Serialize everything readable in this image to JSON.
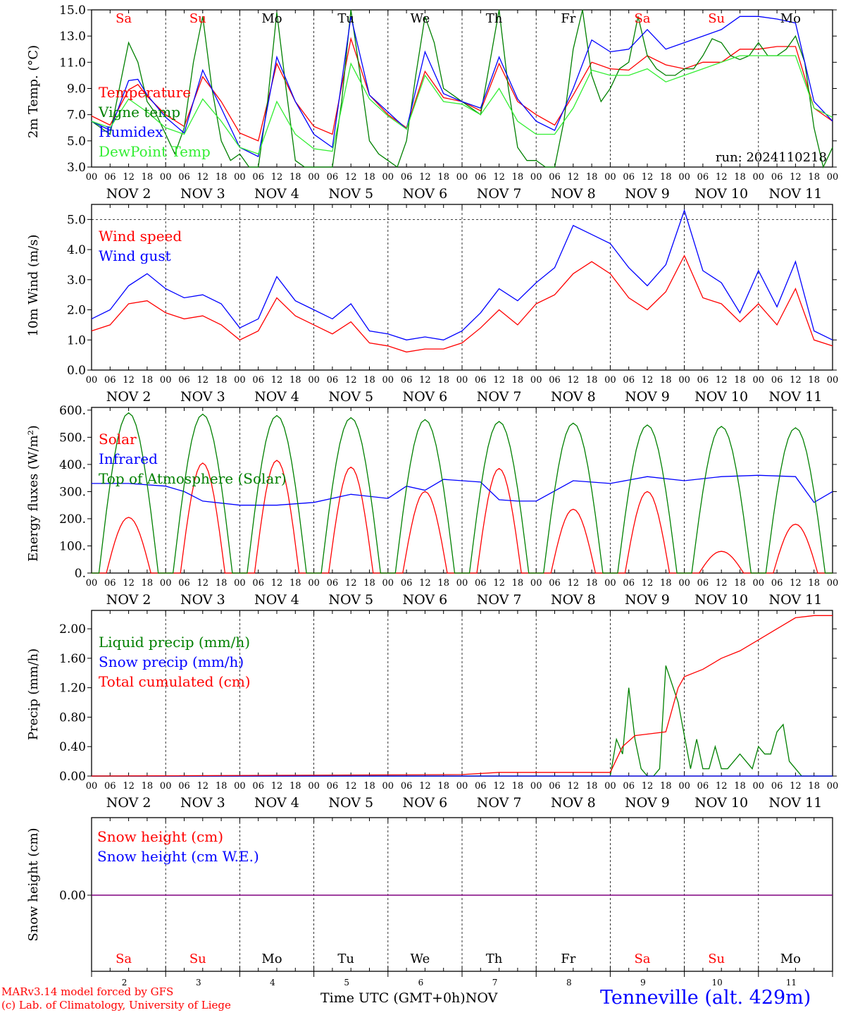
{
  "x_hour_labels": [
    "00",
    "06",
    "12",
    "18"
  ],
  "day_labels": [
    "NOV  2",
    "NOV  3",
    "NOV  4",
    "NOV  5",
    "NOV  6",
    "NOV  7",
    "NOV  8",
    "NOV  9",
    "NOV 10",
    "NOV 11"
  ],
  "weekdays": [
    {
      "label": "Sa",
      "color": "#ff0000"
    },
    {
      "label": "Su",
      "color": "#ff0000"
    },
    {
      "label": "Mo",
      "color": "#000000"
    },
    {
      "label": "Tu",
      "color": "#000000"
    },
    {
      "label": "We",
      "color": "#000000"
    },
    {
      "label": "Th",
      "color": "#000000"
    },
    {
      "label": "Fr",
      "color": "#000000"
    },
    {
      "label": "Sa",
      "color": "#ff0000"
    },
    {
      "label": "Su",
      "color": "#ff0000"
    },
    {
      "label": "Mo",
      "color": "#000000"
    }
  ],
  "bottom_day_numbers": [
    "2",
    "3",
    "4",
    "5",
    "6",
    "7",
    "8",
    "9",
    "10",
    "11"
  ],
  "footer": {
    "model": "MARv3.14 model forced by GFS",
    "credit": "(c) Lab. of Climatology, University of Liege",
    "xlabel": "Time UTC (GMT+0h)",
    "month": "NOV",
    "station": "Tenneville (alt. 429m)"
  },
  "colors": {
    "red": "#ff0000",
    "green": "#008000",
    "blue": "#0000ff",
    "lightgreen": "#33ee33",
    "purple": "#800080"
  },
  "chart_data": [
    {
      "type": "line",
      "ylabel": "2m Temp. (°C)",
      "ylim": [
        3,
        15
      ],
      "yticks": [
        "3.0",
        "5.0",
        "7.0",
        "9.0",
        "11.0",
        "13.0",
        "15.0"
      ],
      "annotation": "run: 2024110218",
      "x_units": "hours from 2024-11-02 00 UTC",
      "series": [
        {
          "name": "Temperature",
          "color": "#ff0000",
          "x": [
            0,
            6,
            12,
            15,
            18,
            24,
            30,
            36,
            42,
            48,
            54,
            60,
            66,
            72,
            78,
            84,
            90,
            96,
            102,
            108,
            114,
            120,
            126,
            132,
            138,
            144,
            150,
            156,
            162,
            168,
            174,
            180,
            186,
            192,
            198,
            204,
            210,
            216,
            222,
            228,
            234,
            240
          ],
          "y": [
            6.9,
            6.2,
            8.9,
            9.3,
            8.4,
            7.0,
            6.1,
            9.9,
            8.0,
            5.6,
            5.0,
            10.9,
            8.0,
            6.1,
            5.5,
            12.8,
            8.5,
            7.0,
            6.0,
            10.3,
            8.3,
            8.0,
            7.3,
            10.9,
            8.0,
            7.0,
            6.2,
            8.5,
            11.0,
            10.5,
            10.4,
            11.5,
            10.8,
            10.5,
            11.0,
            11.0,
            12.0,
            12.0,
            12.2,
            12.2,
            7.5,
            6.5
          ]
        },
        {
          "name": "Vigne temp",
          "color": "#008000",
          "x": [
            0,
            6,
            9,
            12,
            15,
            18,
            21,
            24,
            27,
            30,
            33,
            36,
            39,
            42,
            45,
            48,
            51,
            54,
            57,
            60,
            63,
            66,
            69,
            72,
            75,
            78,
            81,
            84,
            87,
            90,
            93,
            96,
            99,
            102,
            105,
            108,
            111,
            114,
            117,
            120,
            123,
            126,
            129,
            132,
            135,
            138,
            141,
            144,
            147,
            150,
            153,
            156,
            159,
            162,
            165,
            168,
            171,
            174,
            177,
            180,
            183,
            186,
            189,
            192,
            195,
            198,
            201,
            204,
            207,
            210,
            213,
            216,
            219,
            222,
            225,
            228,
            231,
            234,
            237,
            240
          ],
          "y": [
            6.5,
            5.5,
            9.0,
            12.5,
            11.0,
            8.0,
            7.0,
            5.5,
            4.0,
            6.0,
            11.0,
            14.5,
            9.0,
            5.0,
            3.5,
            4.0,
            3.0,
            2.5,
            8.0,
            14.8,
            9.0,
            3.5,
            2.5,
            2.0,
            1.5,
            2.5,
            8.0,
            15.0,
            10.0,
            5.0,
            4.0,
            3.5,
            3.0,
            5.0,
            10.0,
            14.5,
            12.5,
            9.0,
            8.5,
            8.0,
            7.5,
            7.0,
            11.0,
            15.0,
            9.0,
            4.5,
            3.5,
            3.5,
            2.5,
            2.5,
            6.5,
            12.0,
            15.0,
            10.0,
            8.0,
            9.0,
            10.5,
            11.0,
            14.5,
            11.5,
            10.5,
            10.0,
            10.0,
            10.5,
            10.5,
            11.5,
            12.8,
            12.5,
            11.5,
            11.2,
            11.5,
            12.5,
            11.5,
            11.5,
            12.0,
            13.0,
            11.0,
            6.0,
            3.0,
            4.5
          ]
        },
        {
          "name": "Humidex",
          "color": "#0000ff",
          "x": [
            0,
            6,
            12,
            15,
            18,
            24,
            30,
            36,
            42,
            48,
            54,
            60,
            66,
            72,
            78,
            84,
            90,
            96,
            102,
            108,
            114,
            120,
            126,
            132,
            138,
            144,
            150,
            156,
            162,
            168,
            174,
            180,
            186,
            192,
            198,
            204,
            210,
            216,
            222,
            228,
            234,
            240
          ],
          "y": [
            6.5,
            5.8,
            9.6,
            9.7,
            8.5,
            6.8,
            5.6,
            10.4,
            7.5,
            4.5,
            3.8,
            11.4,
            8.0,
            5.5,
            4.5,
            14.5,
            8.5,
            7.2,
            5.9,
            11.8,
            8.6,
            8.0,
            7.5,
            11.4,
            8.2,
            6.5,
            5.8,
            9.0,
            12.7,
            11.8,
            12.0,
            13.5,
            12.0,
            12.5,
            13.0,
            13.5,
            14.5,
            14.5,
            14.3,
            14.0,
            8.0,
            6.5
          ]
        },
        {
          "name": "DewPoint Temp",
          "color": "#33ee33",
          "x": [
            0,
            6,
            12,
            18,
            24,
            30,
            36,
            42,
            48,
            54,
            60,
            66,
            72,
            78,
            84,
            90,
            96,
            102,
            108,
            114,
            120,
            126,
            132,
            138,
            144,
            150,
            156,
            162,
            168,
            174,
            180,
            186,
            192,
            198,
            204,
            210,
            216,
            222,
            228,
            234,
            240
          ],
          "y": [
            6.5,
            6.0,
            8.2,
            7.2,
            6.0,
            5.5,
            8.2,
            6.5,
            4.5,
            4.0,
            8.0,
            5.5,
            4.4,
            4.2,
            10.9,
            8.2,
            6.9,
            5.9,
            10.0,
            8.0,
            7.8,
            7.0,
            9.0,
            6.5,
            5.5,
            5.5,
            7.5,
            10.4,
            10.0,
            10.0,
            10.5,
            9.5,
            10.0,
            10.5,
            11.0,
            11.5,
            11.5,
            11.5,
            11.5,
            7.5,
            6.8
          ]
        }
      ]
    },
    {
      "type": "line",
      "ylabel": "10m Wind (m/s)",
      "ylim": [
        0,
        5.5
      ],
      "yticks": [
        "0.0",
        "1.0",
        "2.0",
        "3.0",
        "4.0",
        "5.0"
      ],
      "x_units": "hours from 2024-11-02 00 UTC",
      "series": [
        {
          "name": "Wind speed",
          "color": "#ff0000",
          "x": [
            0,
            6,
            12,
            18,
            24,
            30,
            36,
            42,
            48,
            54,
            60,
            66,
            72,
            78,
            84,
            90,
            96,
            102,
            108,
            114,
            120,
            126,
            132,
            138,
            144,
            150,
            156,
            162,
            168,
            174,
            180,
            186,
            192,
            198,
            204,
            210,
            216,
            222,
            228,
            234,
            240
          ],
          "y": [
            1.3,
            1.5,
            2.2,
            2.3,
            1.9,
            1.7,
            1.8,
            1.5,
            1.0,
            1.3,
            2.4,
            1.8,
            1.5,
            1.2,
            1.6,
            0.9,
            0.8,
            0.6,
            0.7,
            0.7,
            0.9,
            1.4,
            2.0,
            1.5,
            2.2,
            2.5,
            3.2,
            3.6,
            3.2,
            2.4,
            2.0,
            2.6,
            3.8,
            2.4,
            2.2,
            1.6,
            2.2,
            1.5,
            2.7,
            1.0,
            0.8
          ]
        },
        {
          "name": "Wind gust",
          "color": "#0000ff",
          "x": [
            0,
            6,
            12,
            18,
            24,
            30,
            36,
            42,
            48,
            54,
            60,
            66,
            72,
            78,
            84,
            90,
            96,
            102,
            108,
            114,
            120,
            126,
            132,
            138,
            144,
            150,
            156,
            162,
            168,
            174,
            180,
            186,
            192,
            198,
            204,
            210,
            216,
            222,
            228,
            234,
            240
          ],
          "y": [
            1.7,
            2.0,
            2.8,
            3.2,
            2.7,
            2.4,
            2.5,
            2.2,
            1.4,
            1.7,
            3.1,
            2.3,
            2.0,
            1.7,
            2.2,
            1.3,
            1.2,
            1.0,
            1.1,
            1.0,
            1.3,
            1.9,
            2.7,
            2.3,
            2.9,
            3.4,
            4.8,
            4.5,
            4.2,
            3.4,
            2.8,
            3.5,
            5.3,
            3.3,
            2.9,
            1.9,
            3.3,
            2.1,
            3.6,
            1.3,
            1.0
          ]
        }
      ]
    },
    {
      "type": "line",
      "ylabel": "Energy fluxes (W/m²)",
      "ylim": [
        0,
        610
      ],
      "yticks": [
        "0.",
        "100.",
        "200.",
        "300.",
        "400.",
        "500.",
        "600."
      ],
      "x_units": "hours from 2024-11-02 00 UTC",
      "series": [
        {
          "name": "Solar",
          "color": "#ff0000",
          "peaks": [
            205,
            405,
            415,
            390,
            300,
            385,
            235,
            300,
            80,
            180
          ]
        },
        {
          "name": "Infrared",
          "color": "#0000ff",
          "x": [
            0,
            12,
            24,
            30,
            36,
            48,
            60,
            72,
            84,
            96,
            102,
            108,
            114,
            120,
            126,
            132,
            138,
            144,
            156,
            168,
            180,
            192,
            204,
            216,
            228,
            234,
            240
          ],
          "y": [
            330,
            330,
            320,
            300,
            265,
            250,
            250,
            260,
            290,
            275,
            320,
            305,
            345,
            340,
            335,
            270,
            265,
            265,
            340,
            330,
            355,
            340,
            355,
            360,
            355,
            260,
            300
          ]
        },
        {
          "name": "Top of Atmosphere (Solar)",
          "color": "#008000",
          "peaks": [
            590,
            585,
            580,
            572,
            565,
            558,
            552,
            545,
            540,
            535
          ]
        }
      ]
    },
    {
      "type": "line",
      "ylabel": "Precip (mm/h)",
      "ylim": [
        0,
        2.25
      ],
      "yticks": [
        "0.00",
        "0.40",
        "0.80",
        "1.20",
        "1.60",
        "2.00"
      ],
      "x_units": "hours from 2024-11-02 00 UTC",
      "series": [
        {
          "name": "Liquid precip (mm/h)",
          "color": "#008000",
          "x": [
            0,
            168,
            170,
            172,
            174,
            176,
            178,
            180,
            182,
            184,
            186,
            190,
            194,
            196,
            198,
            200,
            202,
            204,
            206,
            210,
            214,
            216,
            218,
            220,
            222,
            224,
            226,
            228,
            230,
            232,
            234,
            240
          ],
          "y": [
            0,
            0,
            0.5,
            0.3,
            1.2,
            0.5,
            0.1,
            0,
            0,
            0.1,
            1.5,
            1.0,
            0.1,
            0.5,
            0.1,
            0.1,
            0.4,
            0.1,
            0.1,
            0.3,
            0.1,
            0.4,
            0.3,
            0.3,
            0.6,
            0.7,
            0.2,
            0.1,
            0,
            0,
            0,
            0
          ]
        },
        {
          "name": "Snow precip (mm/h)",
          "color": "#0000ff",
          "x": [
            0,
            240
          ],
          "y": [
            0,
            0
          ]
        },
        {
          "name": "Total cumulated (cm)",
          "color": "#ff0000",
          "x": [
            0,
            120,
            132,
            168,
            172,
            176,
            180,
            186,
            190,
            192,
            198,
            204,
            210,
            216,
            222,
            228,
            234,
            240
          ],
          "y": [
            0,
            0.02,
            0.05,
            0.05,
            0.4,
            0.55,
            0.57,
            0.6,
            1.2,
            1.35,
            1.45,
            1.6,
            1.7,
            1.85,
            2.0,
            2.15,
            2.18,
            2.18
          ]
        }
      ]
    },
    {
      "type": "line",
      "ylabel": "Snow height (cm)",
      "yticks": [
        "0.00"
      ],
      "x_units": "hours from 2024-11-02 00 UTC",
      "series": [
        {
          "name": "Snow height (cm)",
          "color": "#ff0000",
          "x": [
            0,
            240
          ],
          "y": [
            0,
            0
          ]
        },
        {
          "name": "Snow height (cm W.E.)",
          "color": "#0000ff",
          "x": [
            0,
            240
          ],
          "y": [
            0,
            0
          ]
        }
      ]
    }
  ]
}
